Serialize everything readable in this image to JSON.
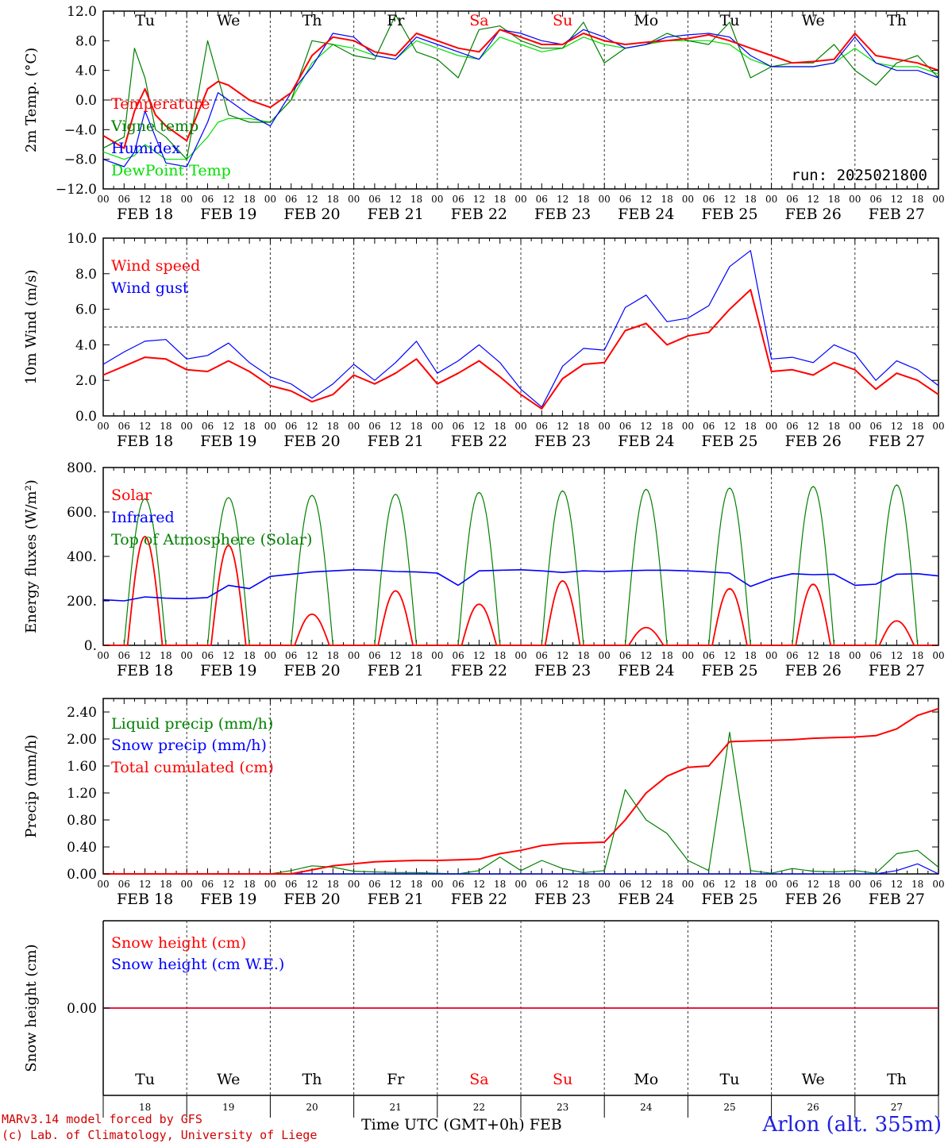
{
  "meta": {
    "run_label": "run: 2025021800",
    "model_line": "MARv3.14 model forced by GFS",
    "credit_line": "(c) Lab. of Climatology, University of Liege",
    "x_title": "Time UTC (GMT+0h) FEB",
    "location": "Arlon (alt. 355m)"
  },
  "days": {
    "dates": [
      "FEB 18",
      "FEB 19",
      "FEB 20",
      "FEB 21",
      "FEB 22",
      "FEB 23",
      "FEB 24",
      "FEB 25",
      "FEB 26",
      "FEB 27"
    ],
    "weekdays": [
      "Tu",
      "We",
      "Th",
      "Fr",
      "Sa",
      "Su",
      "Mo",
      "Tu",
      "We",
      "Th"
    ],
    "day_numbers": [
      "18",
      "19",
      "20",
      "21",
      "22",
      "23",
      "24",
      "25",
      "26",
      "27"
    ],
    "weekend_flags": [
      false,
      false,
      false,
      false,
      true,
      true,
      false,
      false,
      false,
      false
    ],
    "hour_ticks": [
      "00",
      "06",
      "12",
      "18"
    ],
    "final_tick": "00"
  },
  "colors": {
    "red": "#ff0000",
    "green": "#008000",
    "blue": "#0000ff",
    "lightgreen": "#00e000",
    "grid": "#555555",
    "weekend": "#ff0000"
  },
  "chart_data": [
    {
      "type": "line",
      "ylabel": "2m Temp. (°C)",
      "ylim": [
        -12,
        12
      ],
      "yticks": [
        "12.0",
        "8.0",
        "4.0",
        "0.0",
        "−4.0",
        "−8.0",
        "−12.0"
      ],
      "ytick_values": [
        12,
        8,
        4,
        0,
        -4,
        -8,
        -12
      ],
      "reference_line": 0,
      "x_unit": "hours since FEB 18 00 UTC",
      "x": [
        0,
        6,
        9,
        12,
        15,
        18,
        24,
        30,
        33,
        36,
        42,
        48,
        54,
        60,
        66,
        72,
        78,
        84,
        90,
        96,
        102,
        108,
        114,
        120,
        126,
        132,
        138,
        144,
        150,
        156,
        162,
        168,
        174,
        180,
        186,
        192,
        198,
        204,
        210,
        216,
        222,
        228,
        234,
        240
      ],
      "series": [
        {
          "name": "Temperature",
          "color": "#ff0000",
          "values": [
            -4.8,
            -6.5,
            -1.5,
            1.5,
            -2.0,
            -3.5,
            -5.5,
            1.5,
            2.5,
            2.0,
            0.0,
            -1.0,
            1.0,
            6.0,
            8.5,
            8.0,
            6.5,
            6.0,
            9.0,
            8.0,
            7.0,
            6.5,
            9.5,
            8.5,
            7.5,
            7.5,
            9.0,
            8.0,
            7.5,
            7.8,
            8.0,
            8.3,
            8.8,
            8.0,
            7.0,
            6.0,
            5.0,
            5.2,
            5.5,
            9.0,
            6.0,
            5.5,
            5.0,
            4.0
          ]
        },
        {
          "name": "Vigne temp",
          "color": "#008000",
          "values": [
            -6.5,
            -5.0,
            7.0,
            3.0,
            -4.0,
            -5.0,
            -8.0,
            8.0,
            3.0,
            -2.0,
            -3.0,
            -3.0,
            0.0,
            8.0,
            7.5,
            6.0,
            5.5,
            11.5,
            6.5,
            5.5,
            3.0,
            9.5,
            10.0,
            8.0,
            7.0,
            7.0,
            10.5,
            5.0,
            7.0,
            7.5,
            9.0,
            8.0,
            7.5,
            10.5,
            3.0,
            4.5,
            5.0,
            5.0,
            7.5,
            4.0,
            2.0,
            5.0,
            6.0,
            3.0
          ]
        },
        {
          "name": "Humidex",
          "color": "#0000ff",
          "values": [
            -8.0,
            -9.0,
            -7.0,
            -1.5,
            -5.0,
            -8.5,
            -9.0,
            -3.0,
            1.0,
            0.0,
            -2.0,
            -3.5,
            1.0,
            4.5,
            9.0,
            8.5,
            6.0,
            5.5,
            8.5,
            7.5,
            6.5,
            5.5,
            9.5,
            9.0,
            8.0,
            7.5,
            9.5,
            8.5,
            7.0,
            7.5,
            8.5,
            8.8,
            9.0,
            8.5,
            6.0,
            4.5,
            4.5,
            4.5,
            5.0,
            8.5,
            5.0,
            4.0,
            4.0,
            3.0
          ]
        },
        {
          "name": "DewPoint Temp",
          "color": "#00e000",
          "values": [
            -7.0,
            -8.0,
            -7.5,
            -6.0,
            -7.0,
            -8.0,
            -8.0,
            -5.0,
            -3.0,
            -2.5,
            -2.5,
            -3.0,
            0.0,
            5.0,
            7.5,
            7.0,
            6.0,
            5.5,
            8.0,
            7.0,
            6.0,
            5.5,
            8.5,
            7.5,
            6.5,
            7.0,
            8.5,
            7.5,
            7.0,
            7.5,
            8.0,
            8.0,
            8.0,
            7.5,
            5.5,
            4.5,
            4.5,
            4.5,
            5.0,
            7.0,
            5.0,
            4.5,
            4.5,
            3.5
          ]
        }
      ]
    },
    {
      "type": "line",
      "ylabel": "10m Wind (m/s)",
      "ylim": [
        0,
        10
      ],
      "yticks": [
        "10.0",
        "8.0",
        "6.0",
        "4.0",
        "2.0",
        "0.0"
      ],
      "ytick_values": [
        10,
        8,
        6,
        4,
        2,
        0
      ],
      "reference_line": 5,
      "x_unit": "hours since FEB 18 00 UTC",
      "x": [
        0,
        6,
        12,
        18,
        24,
        30,
        36,
        42,
        48,
        54,
        60,
        66,
        72,
        78,
        84,
        90,
        96,
        102,
        108,
        114,
        120,
        126,
        132,
        138,
        144,
        150,
        156,
        162,
        168,
        174,
        180,
        186,
        192,
        198,
        204,
        210,
        216,
        222,
        228,
        234,
        240
      ],
      "series": [
        {
          "name": "Wind speed",
          "color": "#ff0000",
          "values": [
            2.3,
            2.8,
            3.3,
            3.2,
            2.6,
            2.5,
            3.1,
            2.5,
            1.7,
            1.4,
            0.8,
            1.2,
            2.3,
            1.8,
            2.4,
            3.2,
            1.8,
            2.4,
            3.1,
            2.2,
            1.2,
            0.4,
            2.1,
            2.9,
            3.0,
            4.8,
            5.2,
            4.0,
            4.5,
            4.7,
            6.0,
            7.1,
            2.5,
            2.6,
            2.3,
            3.0,
            2.6,
            1.5,
            2.4,
            2.0,
            1.2
          ]
        },
        {
          "name": "Wind gust",
          "color": "#0000ff",
          "values": [
            2.9,
            3.6,
            4.2,
            4.3,
            3.2,
            3.4,
            4.1,
            3.0,
            2.2,
            1.8,
            1.0,
            1.8,
            2.9,
            2.0,
            3.0,
            4.2,
            2.4,
            3.1,
            4.0,
            3.0,
            1.5,
            0.5,
            2.8,
            3.8,
            3.7,
            6.1,
            6.8,
            5.3,
            5.5,
            6.2,
            8.4,
            9.3,
            3.2,
            3.3,
            3.0,
            4.0,
            3.5,
            2.0,
            3.1,
            2.6,
            1.7
          ]
        }
      ]
    },
    {
      "type": "line",
      "ylabel": "Energy fluxes (W/m²)",
      "ylim": [
        0,
        800
      ],
      "yticks": [
        "800.",
        "600.",
        "400.",
        "200.",
        "0."
      ],
      "ytick_values": [
        800,
        600,
        400,
        200,
        0
      ],
      "x_unit": "hours since FEB 18 00 UTC",
      "series": [
        {
          "name": "Solar",
          "color": "#ff0000",
          "peak_hour": 12,
          "peaks": [
            490,
            450,
            140,
            245,
            185,
            290,
            80,
            255,
            275,
            110
          ]
        },
        {
          "name": "Infrared",
          "color": "#0000ff",
          "x": [
            0,
            6,
            12,
            18,
            24,
            30,
            36,
            42,
            48,
            54,
            60,
            66,
            72,
            78,
            84,
            90,
            96,
            102,
            108,
            114,
            120,
            126,
            132,
            138,
            144,
            150,
            156,
            162,
            168,
            174,
            180,
            186,
            192,
            198,
            204,
            210,
            216,
            222,
            228,
            234,
            240
          ],
          "values": [
            205,
            200,
            218,
            212,
            210,
            215,
            270,
            255,
            310,
            320,
            330,
            335,
            340,
            338,
            332,
            330,
            325,
            270,
            335,
            338,
            340,
            335,
            328,
            335,
            332,
            335,
            338,
            338,
            335,
            330,
            325,
            265,
            300,
            322,
            318,
            320,
            270,
            275,
            320,
            322,
            312
          ]
        },
        {
          "name": "Top of Atmosphere (Solar)",
          "color": "#008000",
          "peak_hour": 12,
          "peaks": [
            660,
            665,
            675,
            680,
            688,
            695,
            702,
            708,
            715,
            722
          ]
        }
      ]
    },
    {
      "type": "line",
      "ylabel": "Precip (mm/h)",
      "ylim": [
        0,
        2.6
      ],
      "yticks": [
        "2.40",
        "2.00",
        "1.60",
        "1.20",
        "0.80",
        "0.40",
        "0.00"
      ],
      "ytick_values": [
        2.4,
        2.0,
        1.6,
        1.2,
        0.8,
        0.4,
        0.0
      ],
      "x_unit": "hours since FEB 18 00 UTC",
      "x": [
        0,
        6,
        12,
        18,
        24,
        30,
        36,
        42,
        48,
        54,
        60,
        66,
        72,
        78,
        84,
        90,
        96,
        102,
        108,
        114,
        120,
        126,
        132,
        138,
        144,
        150,
        156,
        162,
        168,
        174,
        180,
        186,
        192,
        198,
        204,
        210,
        216,
        222,
        228,
        234,
        240
      ],
      "series": [
        {
          "name": "Liquid precip (mm/h)",
          "color": "#008000",
          "values": [
            0,
            0,
            0,
            0,
            0,
            0,
            0,
            0,
            0,
            0.05,
            0.12,
            0.1,
            0.04,
            0.03,
            0.02,
            0.02,
            0.01,
            0,
            0.05,
            0.25,
            0.05,
            0.2,
            0.08,
            0.02,
            0.05,
            1.25,
            0.8,
            0.6,
            0.2,
            0.05,
            2.1,
            0.05,
            0.01,
            0.08,
            0.04,
            0.03,
            0.05,
            0.01,
            0.3,
            0.35,
            0.1
          ]
        },
        {
          "name": "Snow precip (mm/h)",
          "color": "#0000ff",
          "values": [
            0,
            0,
            0,
            0,
            0,
            0,
            0,
            0,
            0,
            0,
            0,
            0,
            0,
            0,
            0,
            0,
            0,
            0,
            0,
            0,
            0,
            0,
            0,
            0,
            0,
            0,
            0,
            0,
            0,
            0,
            0,
            0,
            0,
            0,
            0,
            0,
            0,
            0,
            0.05,
            0.15,
            0
          ]
        },
        {
          "name": "Total cumulated (cm)",
          "color": "#ff0000",
          "values": [
            0,
            0,
            0,
            0,
            0,
            0,
            0,
            0,
            0,
            0,
            0.06,
            0.12,
            0.15,
            0.18,
            0.19,
            0.2,
            0.2,
            0.21,
            0.22,
            0.3,
            0.35,
            0.42,
            0.45,
            0.46,
            0.47,
            0.8,
            1.2,
            1.45,
            1.58,
            1.6,
            1.96,
            1.97,
            1.98,
            1.99,
            2.01,
            2.02,
            2.03,
            2.05,
            2.15,
            2.35,
            2.45
          ]
        }
      ]
    },
    {
      "type": "line",
      "ylabel": "Snow height (cm)",
      "yticks": [
        "0.00"
      ],
      "ytick_values": [
        0
      ],
      "x_unit": "hours since FEB 18 00 UTC",
      "x": [
        0,
        240
      ],
      "series": [
        {
          "name": "Snow height (cm)",
          "color": "#ff0000",
          "values": [
            0,
            0
          ]
        },
        {
          "name": "Snow height (cm W.E.)",
          "color": "#0000ff",
          "values": [
            0,
            0
          ]
        }
      ]
    }
  ]
}
